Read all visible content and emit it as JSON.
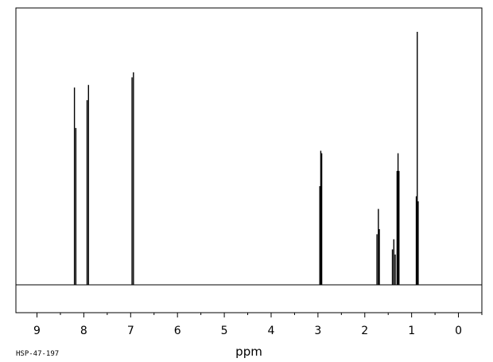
{
  "chart_data": {
    "type": "line",
    "title": "",
    "xlabel": "ppm",
    "ylabel": "",
    "xlim": [
      9.45,
      -0.5
    ],
    "x_reversed": true,
    "x_ticks": [
      "9",
      "8",
      "7",
      "6",
      "5",
      "4",
      "3",
      "2",
      "1",
      "0"
    ],
    "grid": false,
    "legend": "none",
    "spectrum_id": "HSP-47-197",
    "peaks": [
      {
        "ppm": 8.2,
        "intensity": 0.78
      },
      {
        "ppm": 8.17,
        "intensity": 0.62
      },
      {
        "ppm": 7.93,
        "intensity": 0.73
      },
      {
        "ppm": 7.9,
        "intensity": 0.79
      },
      {
        "ppm": 6.97,
        "intensity": 0.82
      },
      {
        "ppm": 6.94,
        "intensity": 0.84
      },
      {
        "ppm": 2.96,
        "intensity": 0.39
      },
      {
        "ppm": 2.94,
        "intensity": 0.53
      },
      {
        "ppm": 2.92,
        "intensity": 0.52
      },
      {
        "ppm": 1.74,
        "intensity": 0.2
      },
      {
        "ppm": 1.71,
        "intensity": 0.3
      },
      {
        "ppm": 1.69,
        "intensity": 0.22
      },
      {
        "ppm": 1.41,
        "intensity": 0.14
      },
      {
        "ppm": 1.38,
        "intensity": 0.18
      },
      {
        "ppm": 1.35,
        "intensity": 0.12
      },
      {
        "ppm": 1.31,
        "intensity": 0.45
      },
      {
        "ppm": 1.29,
        "intensity": 0.52
      },
      {
        "ppm": 1.27,
        "intensity": 0.45
      },
      {
        "ppm": 0.9,
        "intensity": 0.35
      },
      {
        "ppm": 0.88,
        "intensity": 1.0
      },
      {
        "ppm": 0.86,
        "intensity": 0.33
      }
    ]
  }
}
